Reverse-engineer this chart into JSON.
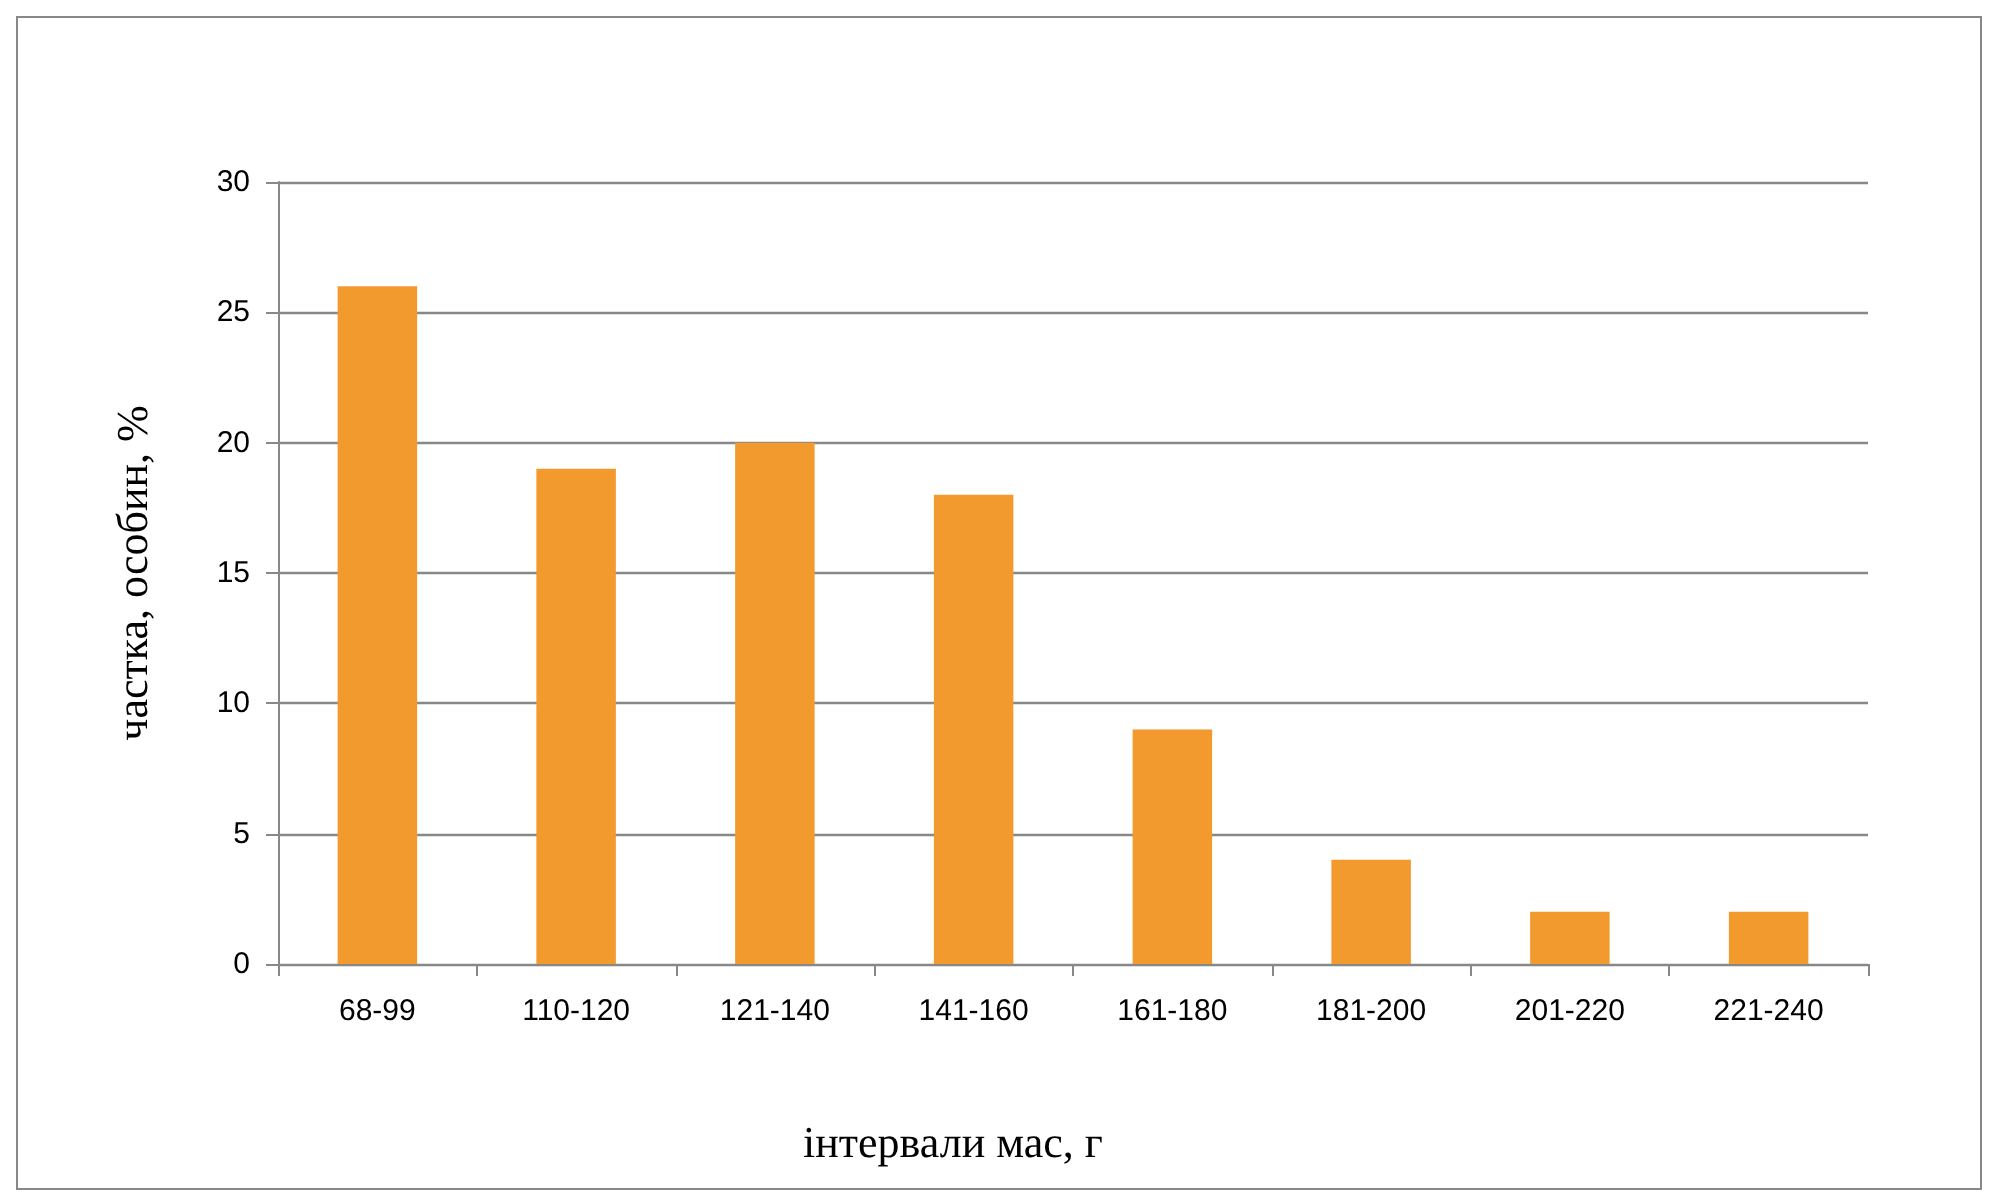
{
  "chart_data": {
    "type": "bar",
    "xlabel": "інтервали мас, г",
    "ylabel": "частка, особин, %",
    "categories": [
      "68-99",
      "110-120",
      "121-140",
      "141-160",
      "161-180",
      "181-200",
      "201-220",
      "221-240"
    ],
    "values": [
      26,
      19,
      20,
      18,
      9,
      4,
      2,
      2
    ],
    "color": "#f39a2e",
    "ylim": [
      0,
      30
    ],
    "yticks": [
      0,
      5,
      10,
      15,
      20,
      25,
      30
    ],
    "grid": "y"
  }
}
